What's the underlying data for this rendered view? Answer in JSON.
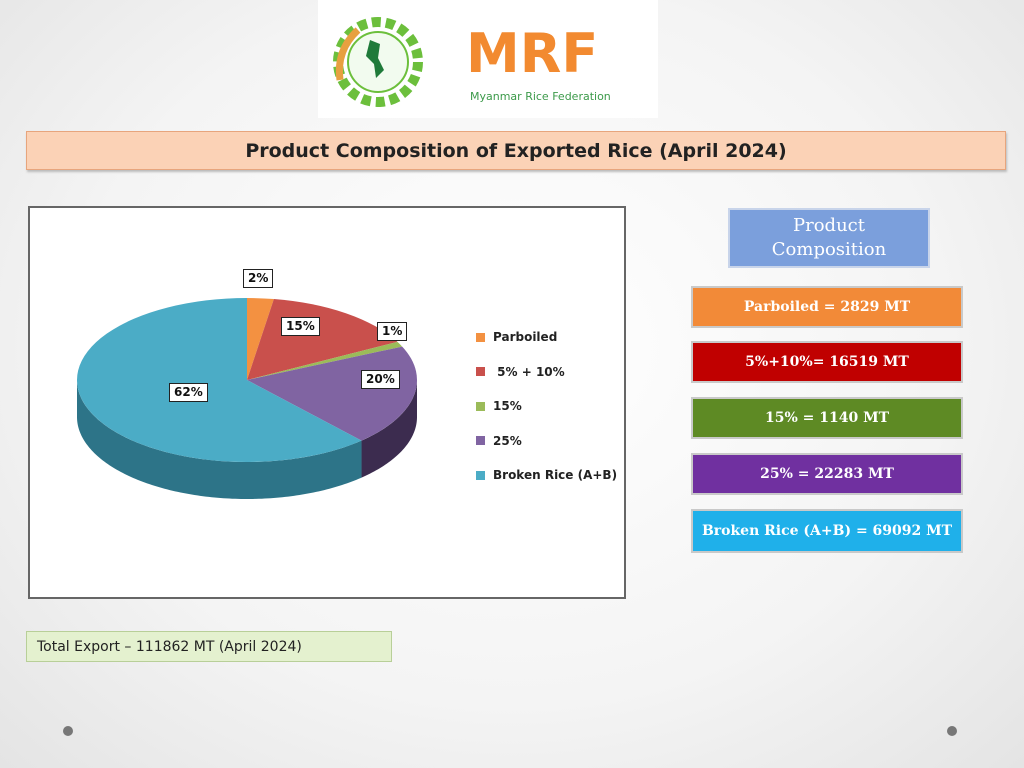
{
  "logo": {
    "text": "MRF",
    "subtitle": "Myanmar Rice Federation"
  },
  "title": "Product Composition of Exported Rice (April 2024)",
  "chart_data": {
    "type": "pie",
    "title": "Product Composition of Exported Rice (April 2024)",
    "categories": [
      "Parboiled",
      " 5% + 10%",
      "15%",
      "25%",
      "Broken Rice (A+B)"
    ],
    "values": [
      2829,
      16519,
      1140,
      22283,
      69092
    ],
    "unit": "MT",
    "data_labels": [
      "2%",
      "15%",
      "1%",
      "20%",
      "62%"
    ],
    "colors": [
      "#f39141",
      "#c9504c",
      "#9bbb59",
      "#8064a2",
      "#4bacc6"
    ],
    "side_colors": [
      "#b86a2c",
      "#8e3532",
      "#6c8a3a",
      "#3c2c4f",
      "#2d7488"
    ],
    "legend": "right"
  },
  "composition": {
    "title": "Product Composition",
    "items": [
      {
        "text": "Parboiled = 2829 MT",
        "color": "#f28a38"
      },
      {
        "text": "5%+10%= 16519 MT",
        "color": "#c00000"
      },
      {
        "text": "15%  = 1140 MT",
        "color": "#5e8a24"
      },
      {
        "text": "25%  = 22283 MT",
        "color": "#7030a0"
      },
      {
        "text": "Broken Rice (A+B) = 69092 MT",
        "color": "#1fb0ea"
      }
    ]
  },
  "total": "Total Export –  111862 MT (April 2024)"
}
